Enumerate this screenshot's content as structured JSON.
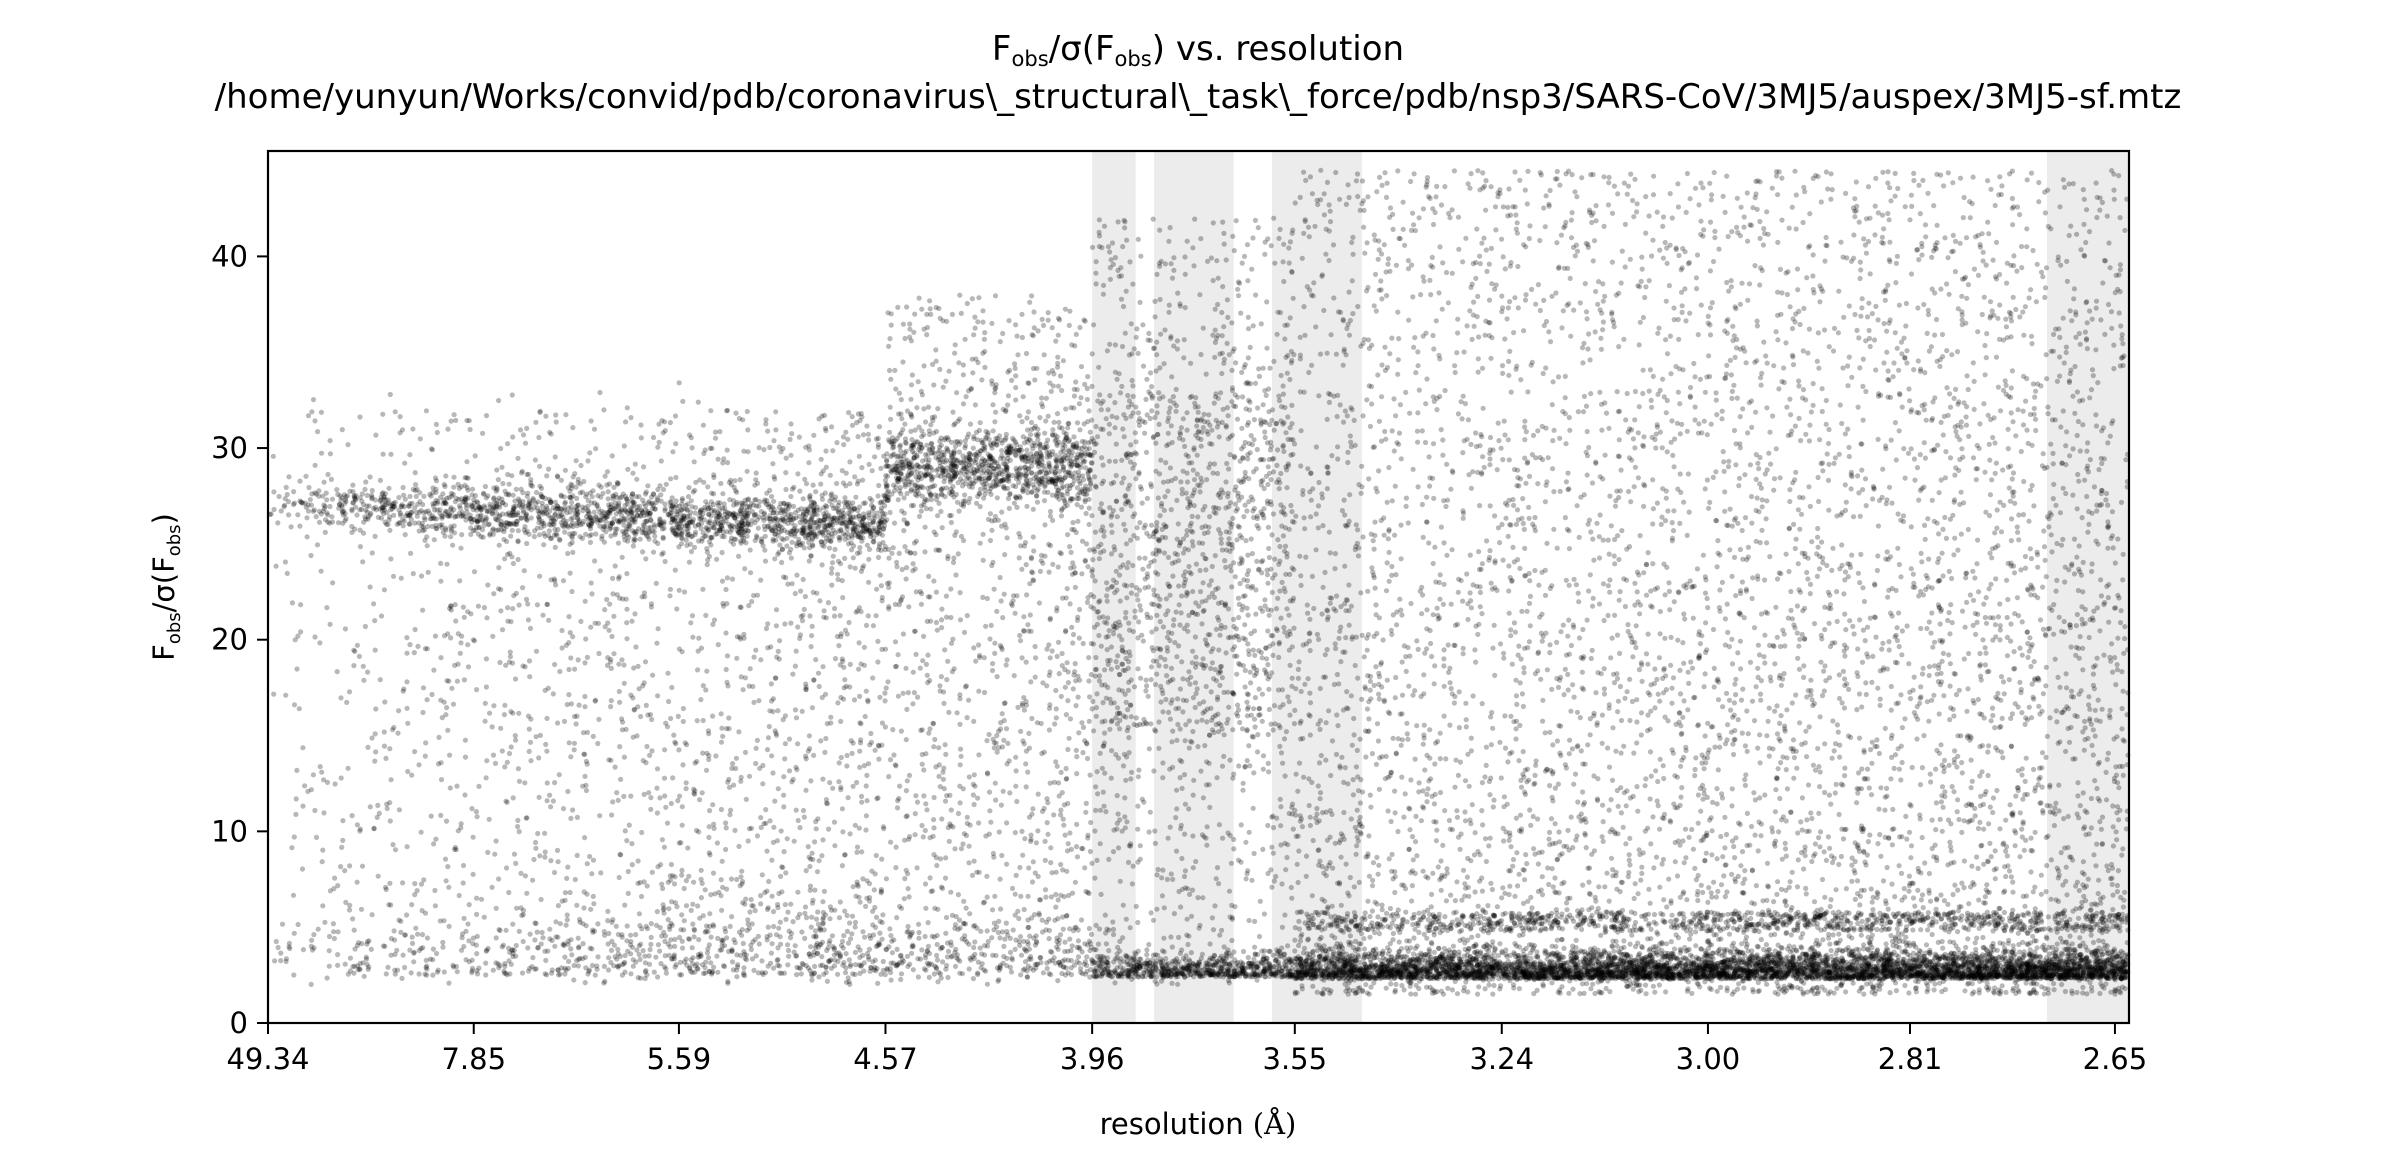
{
  "chart_data": {
    "type": "scatter",
    "title_main": "F",
    "title_sub": "obs",
    "title_mid": "/σ(F",
    "title_sub2": "obs",
    "title_end": ") vs. resolution",
    "subtitle": "/home/yunyun/Works/convid/pdb/coronavirus\\_structural\\_task\\_force/pdb/nsp3/SARS-CoV/3MJ5/auspex/3MJ5-sf.mtz",
    "xlabel_main": "resolution ",
    "xlabel_unit": "(Å)",
    "ylabel_main": "F",
    "ylabel_sub": "obs",
    "ylabel_mid": "/σ(F",
    "ylabel_sub2": "obs",
    "ylabel_end": ")",
    "x_scale": "inverse-square (1/d²), ticks labelled in Å",
    "xlim": [
      49.34,
      2.64
    ],
    "ylim": [
      0,
      45.5
    ],
    "x_ticks": [
      "49.34",
      "7.85",
      "5.59",
      "4.57",
      "3.96",
      "3.55",
      "3.24",
      "3.00",
      "2.81",
      "2.65"
    ],
    "x_tick_values": [
      49.34,
      7.85,
      5.59,
      4.57,
      3.96,
      3.55,
      3.24,
      3.0,
      2.81,
      2.65
    ],
    "y_ticks": [
      "0",
      "10",
      "20",
      "30",
      "40"
    ],
    "y_tick_values": [
      0,
      10,
      20,
      30,
      40
    ],
    "grid": false,
    "ice_ring_bands": [
      {
        "d_max": 3.96,
        "d_min": 3.86
      },
      {
        "d_max": 3.82,
        "d_min": 3.66
      },
      {
        "d_max": 3.59,
        "d_min": 3.44
      },
      {
        "d_max": 2.7,
        "d_min": 2.64
      }
    ],
    "series": [
      {
        "points_approx": 20000,
        "color": "#000000",
        "density_profile": [
          {
            "d_from": 49.34,
            "d_to": 4.57,
            "dense_band_y": [
              26.0,
              27.5
            ],
            "scatter_y": [
              0,
              35
            ]
          },
          {
            "d_from": 4.57,
            "d_to": 3.96,
            "dense_band_y": [
              28.0,
              30.5
            ],
            "scatter_y": [
              0,
              41
            ]
          },
          {
            "d_from": 3.96,
            "d_to": 3.55,
            "dense_band_y": [
              20.0,
              33.0
            ],
            "scatter_y": [
              0,
              44
            ]
          },
          {
            "d_from": 3.55,
            "d_to": 2.64,
            "dense_band_y": [
              2.0,
              3.5
            ],
            "scatter_y": [
              0,
              45
            ]
          }
        ]
      }
    ]
  }
}
